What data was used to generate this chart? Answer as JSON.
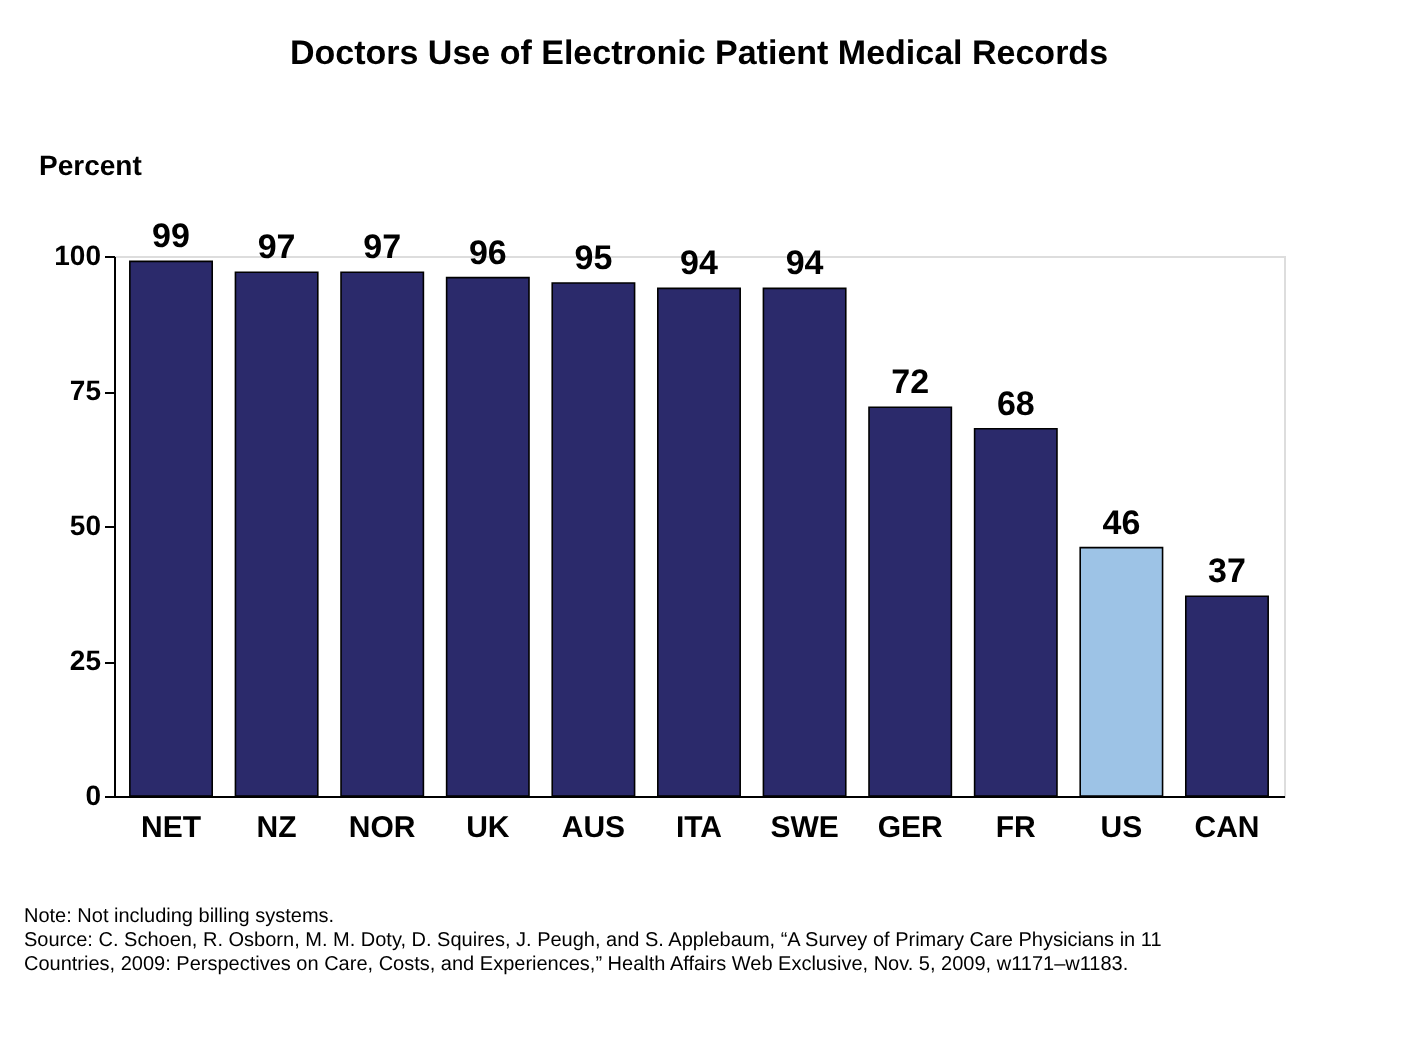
{
  "chart_data": {
    "type": "bar",
    "title": "Doctors Use of Electronic Patient Medical Records",
    "ylabel": "Percent",
    "categories": [
      "NET",
      "NZ",
      "NOR",
      "UK",
      "AUS",
      "ITA",
      "SWE",
      "GER",
      "FR",
      "US",
      "CAN"
    ],
    "values": [
      99,
      97,
      97,
      96,
      95,
      94,
      94,
      72,
      68,
      46,
      37
    ],
    "colors": [
      "#2b2a6b",
      "#2b2a6b",
      "#2b2a6b",
      "#2b2a6b",
      "#2b2a6b",
      "#2b2a6b",
      "#2b2a6b",
      "#2b2a6b",
      "#2b2a6b",
      "#9dc3e6",
      "#2b2a6b"
    ],
    "ylim": [
      0,
      100
    ],
    "yticks": [
      0,
      25,
      50,
      75,
      100
    ],
    "grid": false,
    "data_labels": true,
    "annotations": [
      "Note: Not including billing systems.",
      "Source: C. Schoen, R. Osborn, M. M. Doty, D. Squires, J. Peugh, and  S. Applebaum, “A Survey of Primary Care Physicians in 11 Countries, 2009: Perspectives on Care, Costs, and Experiences,” Health Affairs Web Exclusive, Nov. 5, 2009, w1171–w1183."
    ]
  }
}
